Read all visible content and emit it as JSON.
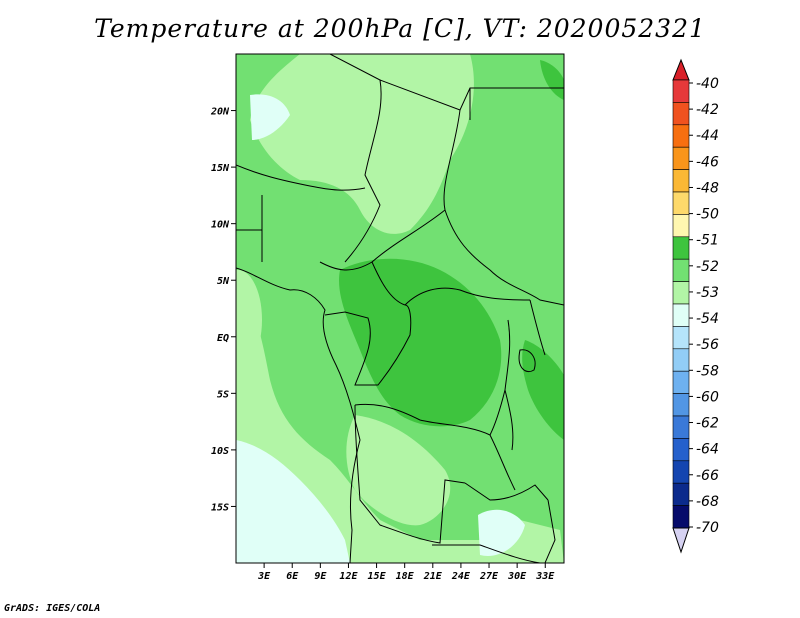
{
  "title": "Temperature at 200hPa [C], VT: 2020052321",
  "credit": "GrADS: IGES/COLA",
  "map": {
    "lon_range": [
      0,
      35
    ],
    "lat_range": [
      -20,
      25
    ],
    "lat_ticks": [
      {
        "value": 20,
        "label": "20N"
      },
      {
        "value": 15,
        "label": "15N"
      },
      {
        "value": 10,
        "label": "10N"
      },
      {
        "value": 5,
        "label": "5N"
      },
      {
        "value": 0,
        "label": "EQ"
      },
      {
        "value": -5,
        "label": "5S"
      },
      {
        "value": -10,
        "label": "10S"
      },
      {
        "value": -15,
        "label": "15S"
      }
    ],
    "lon_ticks": [
      {
        "value": 3,
        "label": "3E"
      },
      {
        "value": 6,
        "label": "6E"
      },
      {
        "value": 9,
        "label": "9E"
      },
      {
        "value": 12,
        "label": "12E"
      },
      {
        "value": 15,
        "label": "15E"
      },
      {
        "value": 18,
        "label": "18E"
      },
      {
        "value": 21,
        "label": "21E"
      },
      {
        "value": 24,
        "label": "24E"
      },
      {
        "value": 27,
        "label": "27E"
      },
      {
        "value": 30,
        "label": "30E"
      },
      {
        "value": 33,
        "label": "33E"
      }
    ]
  },
  "colorbar": {
    "colors": [
      "#e6393a",
      "#f0521f",
      "#f76f10",
      "#f9951b",
      "#fbb835",
      "#fdd96b",
      "#fff7b0",
      "#3ec43e",
      "#72e072",
      "#b2f5a6",
      "#e0fff7",
      "#b5e4fb",
      "#92cdf6",
      "#6eb1f0",
      "#5296e4",
      "#3a79d8",
      "#2560cc",
      "#1445b0",
      "#0b2a8c",
      "#060b6b"
    ],
    "top_color": "#d92028",
    "bottom_color": "#d6d2f2",
    "labels": [
      "-40",
      "-42",
      "-44",
      "-46",
      "-48",
      "-50",
      "-51",
      "-52",
      "-53",
      "-54",
      "-56",
      "-58",
      "-60",
      "-62",
      "-64",
      "-66",
      "-68",
      "-70"
    ]
  }
}
